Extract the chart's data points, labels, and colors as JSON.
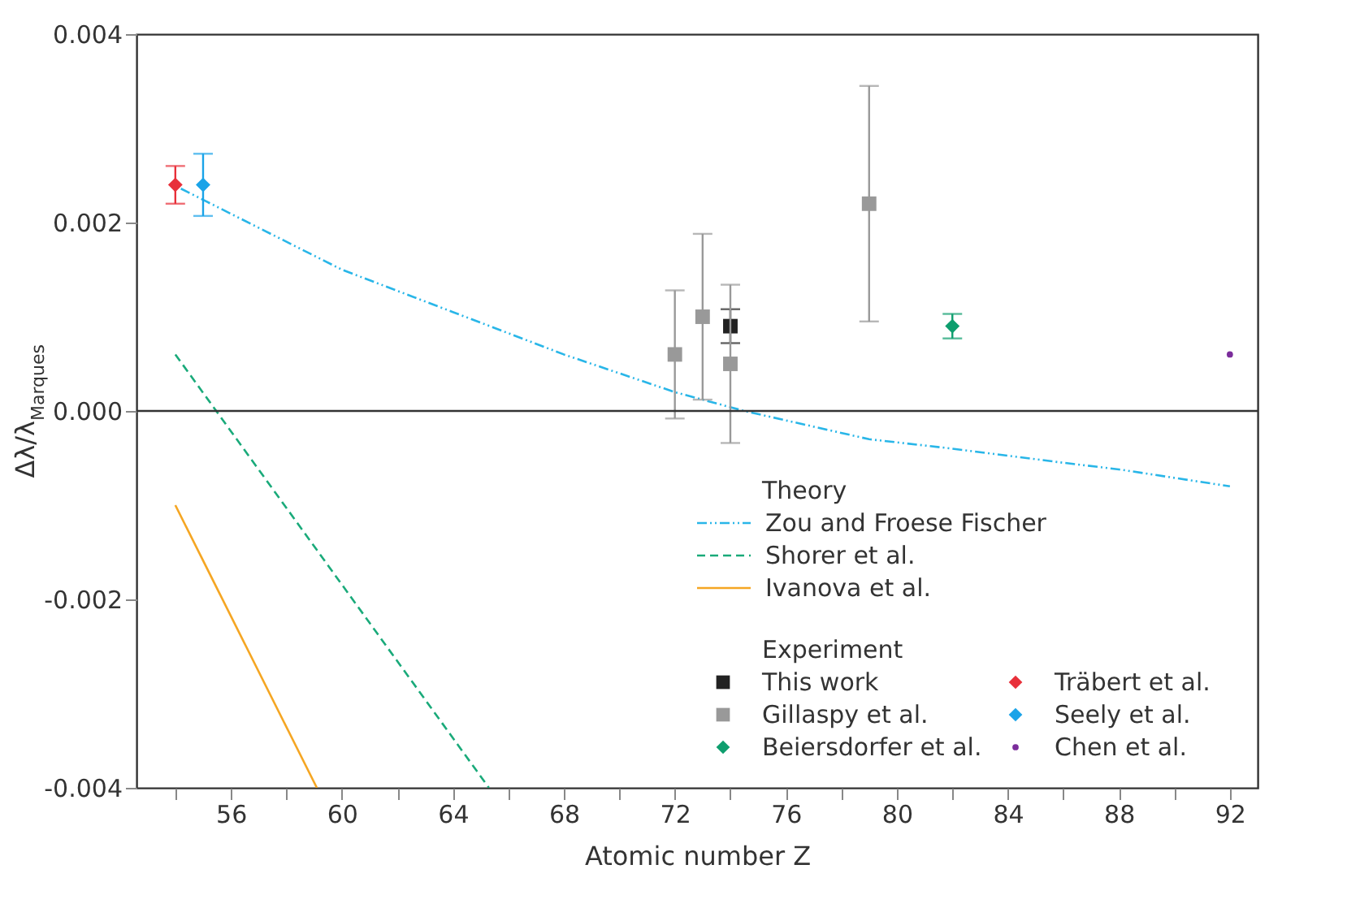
{
  "chart_data": {
    "type": "scatter",
    "xlabel": "Atomic number Z",
    "ylabel": "Δλ/λ$_{Marques}$",
    "xlim": [
      52.6,
      93
    ],
    "ylim": [
      -0.004,
      0.004
    ],
    "xticks": [
      {
        "value": 54,
        "label": null
      },
      56,
      {
        "value": 58,
        "label": null
      },
      60,
      {
        "value": 62,
        "label": null
      },
      64,
      {
        "value": 66,
        "label": null
      },
      68,
      {
        "value": 70,
        "label": null
      },
      72,
      {
        "value": 74,
        "label": null
      },
      76,
      {
        "value": 78,
        "label": null
      },
      80,
      {
        "value": 82,
        "label": null
      },
      84,
      {
        "value": 86,
        "label": null
      },
      88,
      {
        "value": 90,
        "label": null
      },
      92
    ],
    "yticks": [
      -0.004,
      -0.002,
      {
        "value": 0,
        "label": "0.000"
      },
      0.002,
      0.004
    ],
    "grid": false,
    "legend": "bottom right",
    "annotations": [
      "Theory",
      "Experiment"
    ],
    "ref_lines": [
      {
        "axis": "y",
        "value": 0,
        "color": "#333333"
      }
    ],
    "series": [
      {
        "name": "Zou and Froese Fischer",
        "type": "line",
        "color": "#29b6e8",
        "line_style": "dotted",
        "x": [
          54.2,
          60,
          64,
          68,
          72,
          74.5,
          79,
          82,
          86,
          88,
          92
        ],
        "values": [
          0.00236,
          0.0015,
          0.00105,
          0.0006,
          0.0002,
          0.0,
          -0.0003,
          -0.0004,
          -0.00055,
          -0.00062,
          -0.0008
        ]
      },
      {
        "name": "Shorer et al.",
        "type": "line",
        "color": "#1aaa7a",
        "line_style": "dashed",
        "x": [
          54,
          65.3
        ],
        "values": [
          0.0006,
          -0.004
        ]
      },
      {
        "name": "Ivanova et al.",
        "type": "line",
        "color": "#f5a623",
        "line_style": "solid",
        "x": [
          54,
          59.1
        ],
        "values": [
          -0.001,
          -0.004
        ]
      },
      {
        "name": "This work",
        "color": "#222222",
        "marker": "square",
        "x": [
          74
        ],
        "values": [
          0.0009
        ],
        "errors": [
          0.00018
        ]
      },
      {
        "name": "Gillaspy et al.",
        "color": "#999999",
        "marker": "square",
        "x": [
          72,
          73,
          74,
          79
        ],
        "values": [
          0.0006,
          0.001,
          0.0005,
          0.0022
        ],
        "errors": [
          0.00068,
          0.00088,
          0.00084,
          0.00125
        ]
      },
      {
        "name": "Beiersdorfer et al.",
        "color": "#0e9e6e",
        "marker": "diamond",
        "x": [
          82
        ],
        "values": [
          0.0009
        ],
        "errors": [
          0.00013
        ]
      },
      {
        "name": "Träbert et al.",
        "color": "#e8303a",
        "marker": "diamond",
        "x": [
          54
        ],
        "values": [
          0.0024
        ],
        "errors": [
          0.0002
        ]
      },
      {
        "name": "Seely et al.",
        "color": "#1aa3e8",
        "marker": "diamond",
        "x": [
          55
        ],
        "values": [
          0.0024
        ],
        "errors": [
          0.00033
        ]
      },
      {
        "name": "Chen et al.",
        "color": "#7b2d9b",
        "marker": "circle",
        "x": [
          92
        ],
        "values": [
          0.0006
        ]
      }
    ]
  }
}
